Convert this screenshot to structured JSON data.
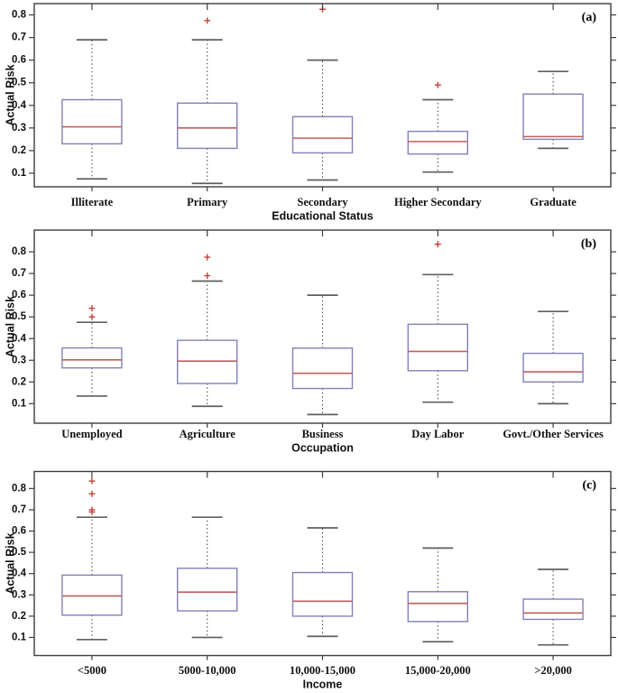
{
  "figure": {
    "ylabel": "Actual Risk",
    "panel_labels": [
      "(a)",
      "(b)",
      "(c)"
    ]
  },
  "colors": {
    "box_edge": "#8181b8",
    "median": "#c0615c",
    "outlier": "#c8403a",
    "whisker": "#4d4d4d",
    "cap": "#5f5f5f",
    "axis": "#3d3d3d",
    "text": "#111111"
  },
  "chart_data": [
    {
      "type": "box",
      "panel_label": "(a)",
      "xlabel": "Educational Status",
      "ylabel": "Actual Risk",
      "ylim": [
        0.04,
        0.85
      ],
      "yticks": [
        0.1,
        0.2,
        0.3,
        0.4,
        0.5,
        0.6,
        0.7,
        0.8
      ],
      "categories": [
        "Illiterate",
        "Primary",
        "Secondary",
        "Higher Secondary",
        "Graduate"
      ],
      "boxes": [
        {
          "whislo": 0.075,
          "q1": 0.23,
          "med": 0.305,
          "q3": 0.425,
          "whishi": 0.69,
          "outliers": []
        },
        {
          "whislo": 0.055,
          "q1": 0.21,
          "med": 0.3,
          "q3": 0.41,
          "whishi": 0.69,
          "outliers": [
            0.775
          ]
        },
        {
          "whislo": 0.07,
          "q1": 0.19,
          "med": 0.255,
          "q3": 0.35,
          "whishi": 0.6,
          "outliers": [
            0.825
          ]
        },
        {
          "whislo": 0.105,
          "q1": 0.185,
          "med": 0.24,
          "q3": 0.285,
          "whishi": 0.425,
          "outliers": [
            0.49
          ]
        },
        {
          "whislo": 0.21,
          "q1": 0.25,
          "med": 0.262,
          "q3": 0.45,
          "whishi": 0.55,
          "outliers": []
        }
      ]
    },
    {
      "type": "box",
      "panel_label": "(b)",
      "xlabel": "Occupation",
      "ylabel": "Actual Risk",
      "ylim": [
        0.01,
        0.9
      ],
      "yticks": [
        0.1,
        0.2,
        0.3,
        0.4,
        0.5,
        0.6,
        0.7,
        0.8
      ],
      "categories": [
        "Unemployed",
        "Agriculture",
        "Business",
        "Day Labor",
        "Govt./Other Services"
      ],
      "boxes": [
        {
          "whislo": 0.135,
          "q1": 0.265,
          "med": 0.302,
          "q3": 0.357,
          "whishi": 0.475,
          "outliers": [
            0.5,
            0.54
          ]
        },
        {
          "whislo": 0.088,
          "q1": 0.193,
          "med": 0.296,
          "q3": 0.392,
          "whishi": 0.665,
          "outliers": [
            0.69,
            0.775
          ]
        },
        {
          "whislo": 0.05,
          "q1": 0.17,
          "med": 0.24,
          "q3": 0.356,
          "whishi": 0.6,
          "outliers": []
        },
        {
          "whislo": 0.107,
          "q1": 0.252,
          "med": 0.341,
          "q3": 0.466,
          "whishi": 0.695,
          "outliers": [
            0.835
          ]
        },
        {
          "whislo": 0.1,
          "q1": 0.2,
          "med": 0.247,
          "q3": 0.332,
          "whishi": 0.525,
          "outliers": []
        }
      ]
    },
    {
      "type": "box",
      "panel_label": "(c)",
      "xlabel": "Income",
      "ylabel": "Actual Risk",
      "ylim": [
        0.015,
        0.88
      ],
      "yticks": [
        0.1,
        0.2,
        0.3,
        0.4,
        0.5,
        0.6,
        0.7,
        0.8
      ],
      "categories": [
        "<5000",
        "5000-10,000",
        "10,000-15,000",
        "15,000-20,000",
        ">20,000"
      ],
      "boxes": [
        {
          "whislo": 0.09,
          "q1": 0.205,
          "med": 0.295,
          "q3": 0.393,
          "whishi": 0.665,
          "outliers": [
            0.835,
            0.775,
            0.7,
            0.69
          ]
        },
        {
          "whislo": 0.1,
          "q1": 0.225,
          "med": 0.313,
          "q3": 0.425,
          "whishi": 0.665,
          "outliers": []
        },
        {
          "whislo": 0.105,
          "q1": 0.2,
          "med": 0.27,
          "q3": 0.405,
          "whishi": 0.615,
          "outliers": []
        },
        {
          "whislo": 0.08,
          "q1": 0.175,
          "med": 0.26,
          "q3": 0.315,
          "whishi": 0.52,
          "outliers": []
        },
        {
          "whislo": 0.065,
          "q1": 0.185,
          "med": 0.215,
          "q3": 0.28,
          "whishi": 0.42,
          "outliers": []
        }
      ]
    }
  ]
}
